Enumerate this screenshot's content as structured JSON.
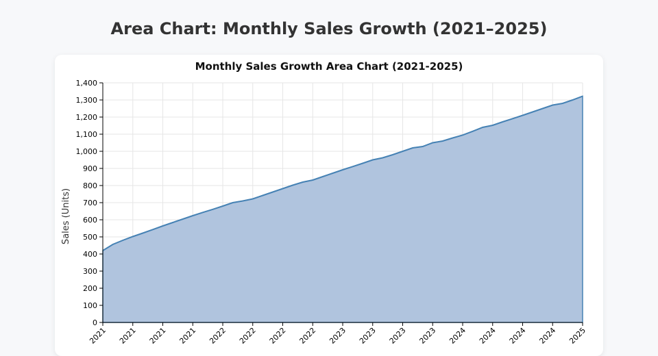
{
  "page": {
    "title": "Area Chart: Monthly Sales Growth (2021–2025)"
  },
  "chart_data": {
    "type": "area",
    "title": "Monthly Sales Growth Area Chart (2021-2025)",
    "xlabel": "",
    "ylabel": "Sales (Units)",
    "ylim": [
      0,
      1400
    ],
    "yticks": [
      0,
      100,
      200,
      300,
      400,
      500,
      600,
      700,
      800,
      900,
      1000,
      1100,
      1200,
      1300,
      1400
    ],
    "ytick_labels": [
      "0",
      "100",
      "200",
      "300",
      "400",
      "500",
      "600",
      "700",
      "800",
      "900",
      "1,000",
      "1,100",
      "1,200",
      "1,300",
      "1,400"
    ],
    "xtick_labels": [
      "2021",
      "2021",
      "2021",
      "2021",
      "2022",
      "2022",
      "2022",
      "2022",
      "2023",
      "2023",
      "2023",
      "2023",
      "2024",
      "2024",
      "2024",
      "2024",
      "2025"
    ],
    "x_months_per_tick": 3,
    "grid": true,
    "colors": {
      "fill": "#b0c4de",
      "line": "#4682b4",
      "grid": "#e6e6e6"
    },
    "values": [
      420,
      456,
      480,
      502,
      522,
      543,
      564,
      584,
      604,
      624,
      643,
      661,
      680,
      700,
      710,
      722,
      742,
      762,
      782,
      802,
      820,
      832,
      852,
      872,
      892,
      911,
      930,
      950,
      962,
      980,
      1000,
      1020,
      1028,
      1050,
      1060,
      1078,
      1095,
      1117,
      1140,
      1152,
      1172,
      1191,
      1210,
      1230,
      1250,
      1270,
      1280,
      1300,
      1322
    ]
  }
}
